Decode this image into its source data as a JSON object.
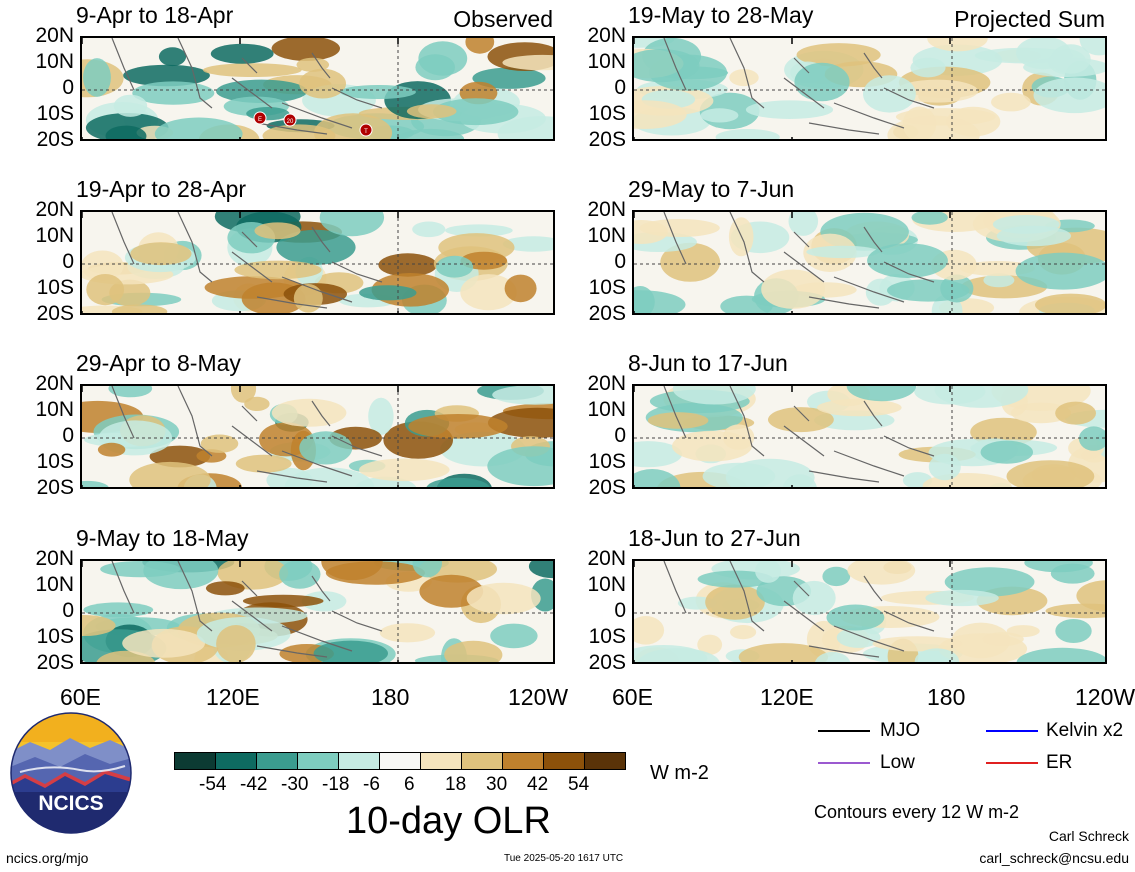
{
  "panels_left": [
    {
      "title": "9-Apr to 18-Apr",
      "subtitle": "Observed"
    },
    {
      "title": "19-Apr to 28-Apr",
      "subtitle": ""
    },
    {
      "title": "29-Apr to 8-May",
      "subtitle": ""
    },
    {
      "title": "9-May to 18-May",
      "subtitle": ""
    }
  ],
  "panels_right": [
    {
      "title": "19-May to 28-May",
      "subtitle": "Projected Sum"
    },
    {
      "title": "29-May to 7-Jun",
      "subtitle": ""
    },
    {
      "title": "8-Jun to 17-Jun",
      "subtitle": ""
    },
    {
      "title": "18-Jun to 27-Jun",
      "subtitle": ""
    }
  ],
  "lat_labels": [
    "20N",
    "10N",
    "0",
    "10S",
    "20S"
  ],
  "lon_labels": [
    "60E",
    "120E",
    "180",
    "120W"
  ],
  "storm_markers": [
    "E",
    "20",
    "T"
  ],
  "colorbar": {
    "colors": [
      "#0c3b33",
      "#0e6b61",
      "#3b9c8f",
      "#7ecdbf",
      "#c5ebe3",
      "#f7f7f5",
      "#f5e4bd",
      "#dfc27d",
      "#bf812d",
      "#8c510a",
      "#5a3308"
    ],
    "labels": [
      "-54",
      "-42",
      "-30",
      "-18",
      "-6",
      "6",
      "18",
      "30",
      "42",
      "54"
    ],
    "units": "W m-2",
    "title": "10-day OLR"
  },
  "line_legend": [
    {
      "label": "MJO",
      "color": "#000000"
    },
    {
      "label": "Kelvin x2",
      "color": "#0000ff"
    },
    {
      "label": "Low",
      "color": "#9b59d0"
    },
    {
      "label": "ER",
      "color": "#e02020"
    }
  ],
  "contours_note": "Contours every 12 W m-2",
  "logo_text": "NCICS",
  "site": "ncics.org/mjo",
  "timestamp": "Tue 2025-05-20 1617 UTC",
  "author": "Carl Schreck",
  "email": "carl_schreck@ncsu.edu"
}
